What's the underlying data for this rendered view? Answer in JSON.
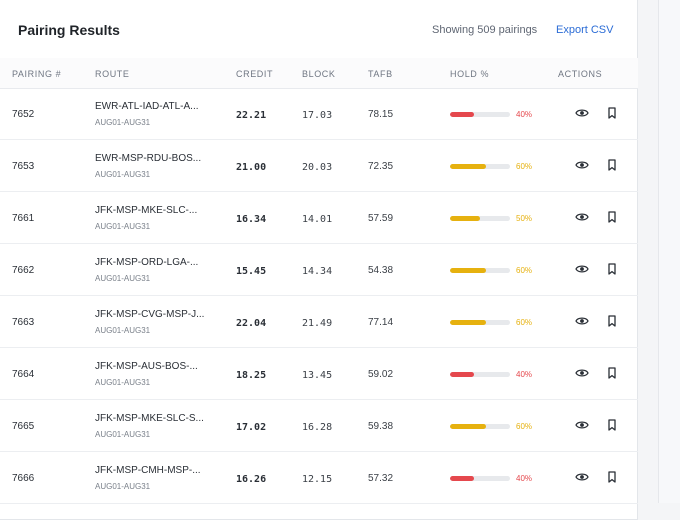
{
  "header": {
    "title": "Pairing Results",
    "count_text": "Showing 509 pairings",
    "export_label": "Export CSV"
  },
  "columns": {
    "pairing": "PAIRING #",
    "route": "ROUTE",
    "credit": "CREDIT",
    "block": "BLOCK",
    "tafb": "TAFB",
    "hold": "HOLD %",
    "actions": "ACTIONS"
  },
  "colors": {
    "hold_low": "#e5484d",
    "hold_mid": "#e6b10f",
    "accent": "#2b6cd6"
  },
  "rows": [
    {
      "id": "7652",
      "route": "EWR-ATL-IAD-ATL-A...",
      "dates": "AUG01-AUG31",
      "credit": "22.21",
      "block": "17.03",
      "tafb": "78.15",
      "hold_label": "40%",
      "hold_value": 40,
      "hold_level": "low"
    },
    {
      "id": "7653",
      "route": "EWR-MSP-RDU-BOS...",
      "dates": "AUG01-AUG31",
      "credit": "21.00",
      "block": "20.03",
      "tafb": "72.35",
      "hold_label": "60%",
      "hold_value": 60,
      "hold_level": "mid"
    },
    {
      "id": "7661",
      "route": "JFK-MSP-MKE-SLC-...",
      "dates": "AUG01-AUG31",
      "credit": "16.34",
      "block": "14.01",
      "tafb": "57.59",
      "hold_label": "50%",
      "hold_value": 50,
      "hold_level": "mid"
    },
    {
      "id": "7662",
      "route": "JFK-MSP-ORD-LGA-...",
      "dates": "AUG01-AUG31",
      "credit": "15.45",
      "block": "14.34",
      "tafb": "54.38",
      "hold_label": "60%",
      "hold_value": 60,
      "hold_level": "mid"
    },
    {
      "id": "7663",
      "route": "JFK-MSP-CVG-MSP-J...",
      "dates": "AUG01-AUG31",
      "credit": "22.04",
      "block": "21.49",
      "tafb": "77.14",
      "hold_label": "60%",
      "hold_value": 60,
      "hold_level": "mid"
    },
    {
      "id": "7664",
      "route": "JFK-MSP-AUS-BOS-...",
      "dates": "AUG01-AUG31",
      "credit": "18.25",
      "block": "13.45",
      "tafb": "59.02",
      "hold_label": "40%",
      "hold_value": 40,
      "hold_level": "low"
    },
    {
      "id": "7665",
      "route": "JFK-MSP-MKE-SLC-S...",
      "dates": "AUG01-AUG31",
      "credit": "17.02",
      "block": "16.28",
      "tafb": "59.38",
      "hold_label": "60%",
      "hold_value": 60,
      "hold_level": "mid"
    },
    {
      "id": "7666",
      "route": "JFK-MSP-CMH-MSP-...",
      "dates": "AUG01-AUG31",
      "credit": "16.26",
      "block": "12.15",
      "tafb": "57.32",
      "hold_label": "40%",
      "hold_value": 40,
      "hold_level": "low"
    }
  ],
  "icons": {
    "view": "eye-icon",
    "bookmark": "bookmark-icon"
  }
}
